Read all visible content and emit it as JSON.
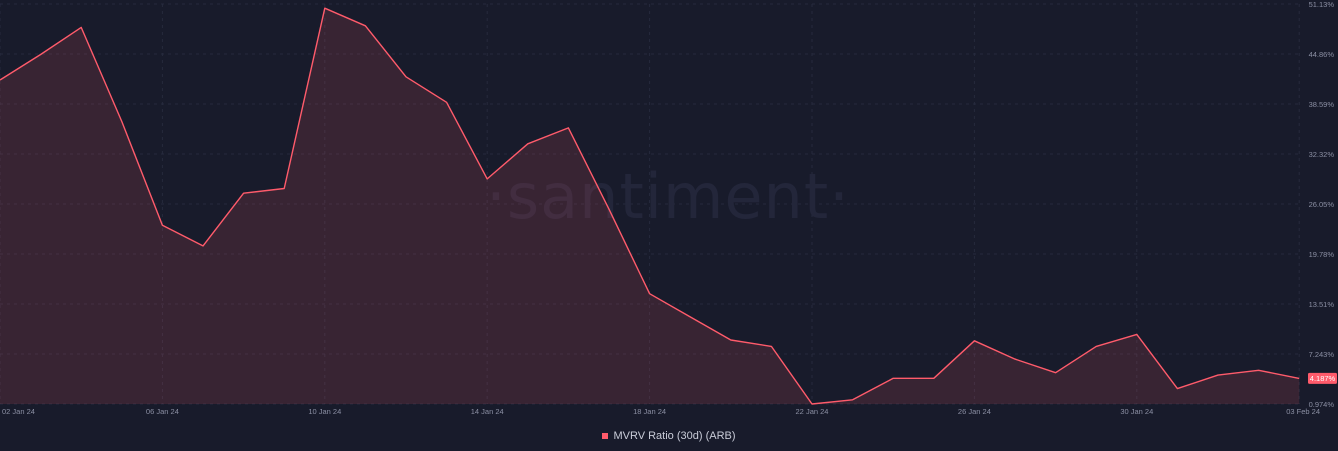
{
  "chart_data": {
    "type": "area",
    "watermark": "·santiment·",
    "y_unit": "%",
    "ylim": [
      0.974,
      51.13
    ],
    "y_ticks": [
      "51.13%",
      "44.86%",
      "38.59%",
      "32.32%",
      "26.05%",
      "19.78%",
      "13.51%",
      "7.243%",
      "0.974%"
    ],
    "x_ticks": [
      "02 Jan 24",
      "06 Jan 24",
      "10 Jan 24",
      "14 Jan 24",
      "18 Jan 24",
      "22 Jan 24",
      "26 Jan 24",
      "30 Jan 24",
      "03 Feb 24"
    ],
    "x": [
      "02 Jan 24",
      "03 Jan 24",
      "04 Jan 24",
      "05 Jan 24",
      "06 Jan 24",
      "07 Jan 24",
      "08 Jan 24",
      "09 Jan 24",
      "10 Jan 24",
      "11 Jan 24",
      "12 Jan 24",
      "13 Jan 24",
      "14 Jan 24",
      "15 Jan 24",
      "16 Jan 24",
      "17 Jan 24",
      "18 Jan 24",
      "19 Jan 24",
      "20 Jan 24",
      "21 Jan 24",
      "22 Jan 24",
      "23 Jan 24",
      "24 Jan 24",
      "25 Jan 24",
      "26 Jan 24",
      "27 Jan 24",
      "28 Jan 24",
      "29 Jan 24",
      "30 Jan 24",
      "31 Jan 24",
      "01 Feb 24",
      "02 Feb 24",
      "03 Feb 24"
    ],
    "series": [
      {
        "name": "MVRV Ratio (30d) (ARB)",
        "color": "#ff5b6b",
        "values": [
          41.6,
          44.8,
          48.2,
          36.4,
          23.4,
          20.8,
          27.4,
          28.0,
          50.6,
          48.4,
          42.0,
          38.8,
          29.2,
          33.6,
          35.6,
          25.4,
          14.8,
          11.9,
          9.0,
          8.2,
          0.98,
          1.5,
          4.2,
          4.2,
          8.9,
          6.6,
          4.9,
          8.2,
          9.7,
          2.9,
          4.6,
          5.2,
          4.187
        ]
      }
    ],
    "last_value_label": "4.187%",
    "grid": true,
    "legend_position": "bottom-center"
  }
}
